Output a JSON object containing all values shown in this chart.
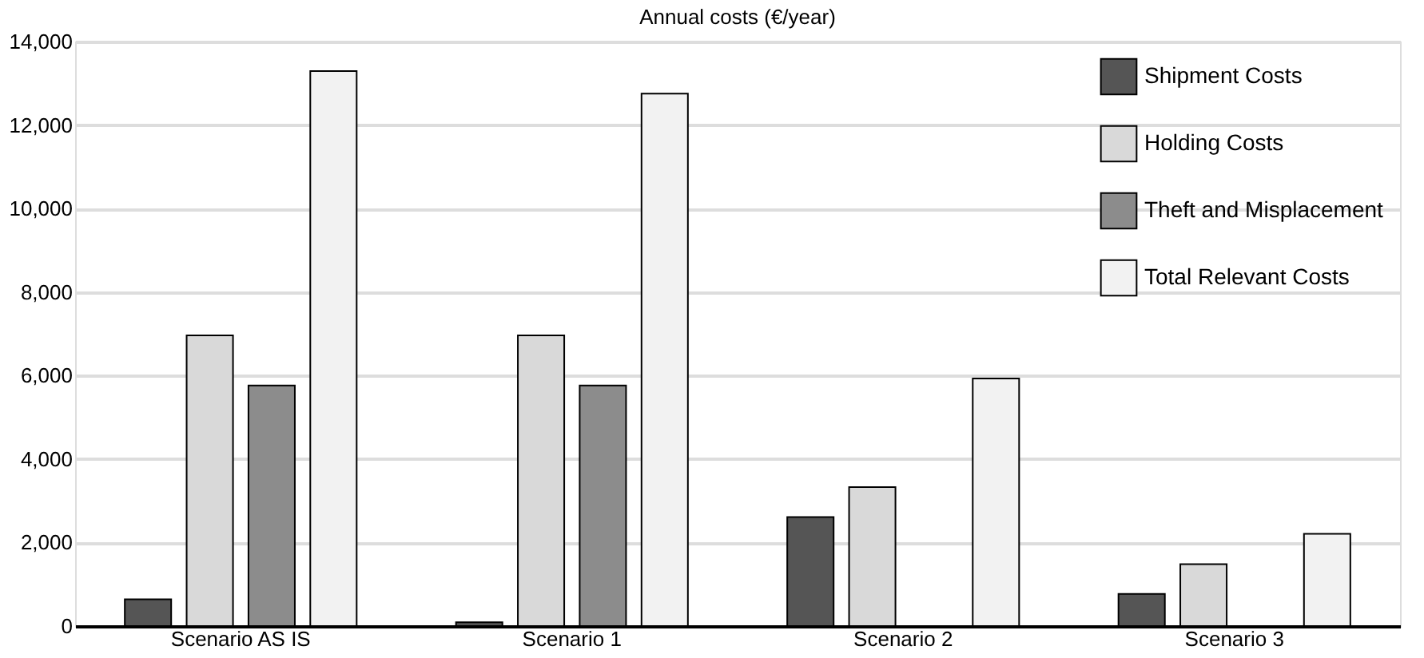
{
  "chart_data": {
    "type": "bar",
    "title": "Annual costs (€/year)",
    "categories": [
      "Scenario AS IS",
      "Scenario 1",
      "Scenario 2",
      "Scenario 3"
    ],
    "series": [
      {
        "name": "Shipment Costs",
        "color": "#555555",
        "values": [
          640,
          90,
          2610,
          770
        ]
      },
      {
        "name": "Holding Costs",
        "color": "#d9d9d9",
        "values": [
          6960,
          6960,
          3330,
          1480
        ]
      },
      {
        "name": "Theft and Misplacement",
        "color": "#8c8c8c",
        "values": [
          5760,
          5760,
          null,
          null
        ]
      },
      {
        "name": "Total Relevant Costs",
        "color": "#f2f2f2",
        "values": [
          13290,
          12750,
          5930,
          2210
        ]
      }
    ],
    "ylim": [
      0,
      14000
    ],
    "yticks": [
      0,
      {
        "value": 2000,
        "label": "2,000"
      },
      {
        "value": 4000,
        "label": "4,000"
      },
      {
        "value": 6000,
        "label": "6,000"
      },
      {
        "value": 8000,
        "label": "8,000"
      },
      {
        "value": 10000,
        "label": "10,000"
      },
      {
        "value": 12000,
        "label": "12,000"
      },
      {
        "value": 14000,
        "label": "14,000"
      }
    ],
    "grid": "y",
    "legend": "top right"
  }
}
